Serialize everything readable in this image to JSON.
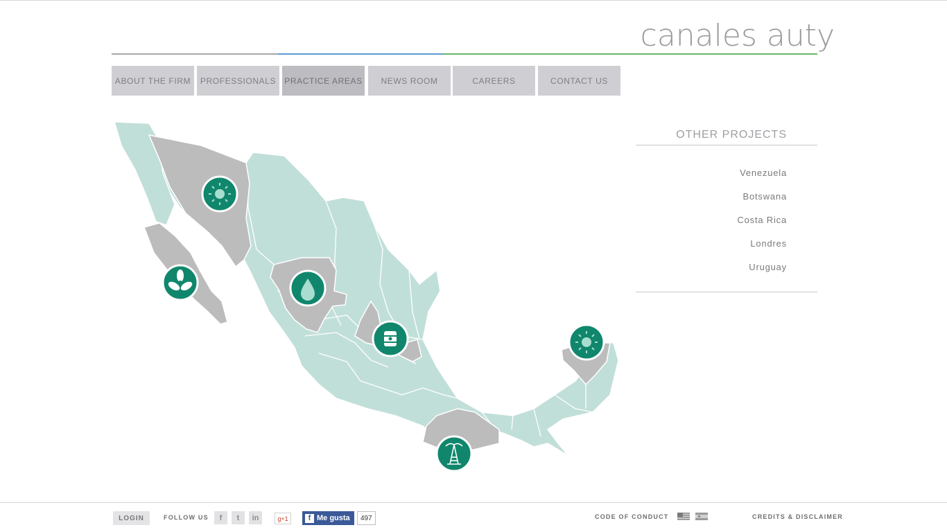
{
  "brand": {
    "logo_text": "canales auty"
  },
  "nav": {
    "items": [
      {
        "label": "ABOUT THE FIRM"
      },
      {
        "label": "PROFESSIONALS"
      },
      {
        "label": "PRACTICE AREAS",
        "active": true
      },
      {
        "label": "NEWS ROOM"
      },
      {
        "label": "CAREERS"
      },
      {
        "label": "CONTACT US"
      }
    ]
  },
  "map": {
    "base_color": "#c1dfd9",
    "highlight_color": "#bcbcbc",
    "marker_color": "#10876c",
    "markers": [
      {
        "icon": "sun-icon"
      },
      {
        "icon": "fan-icon"
      },
      {
        "icon": "water-drop-icon"
      },
      {
        "icon": "oil-barrel-icon"
      },
      {
        "icon": "sun-icon"
      },
      {
        "icon": "oil-rig-icon"
      }
    ]
  },
  "other_projects": {
    "title": "OTHER PROJECTS",
    "items": [
      "Venezuela",
      "Botswana",
      "Costa Rica",
      "Londres",
      "Uruguay"
    ]
  },
  "footer": {
    "login": "LOGIN",
    "follow_us": "FOLLOW US",
    "social": [
      "f",
      "t",
      "in"
    ],
    "gplus": "g+1",
    "fb_like": "Me gusta",
    "fb_count": "497",
    "code_of_conduct": "CODE OF CONDUCT",
    "languages": [
      "us-flag-icon",
      "es-flag-icon"
    ],
    "credits": "CREDITS & DISCLAIMER"
  }
}
